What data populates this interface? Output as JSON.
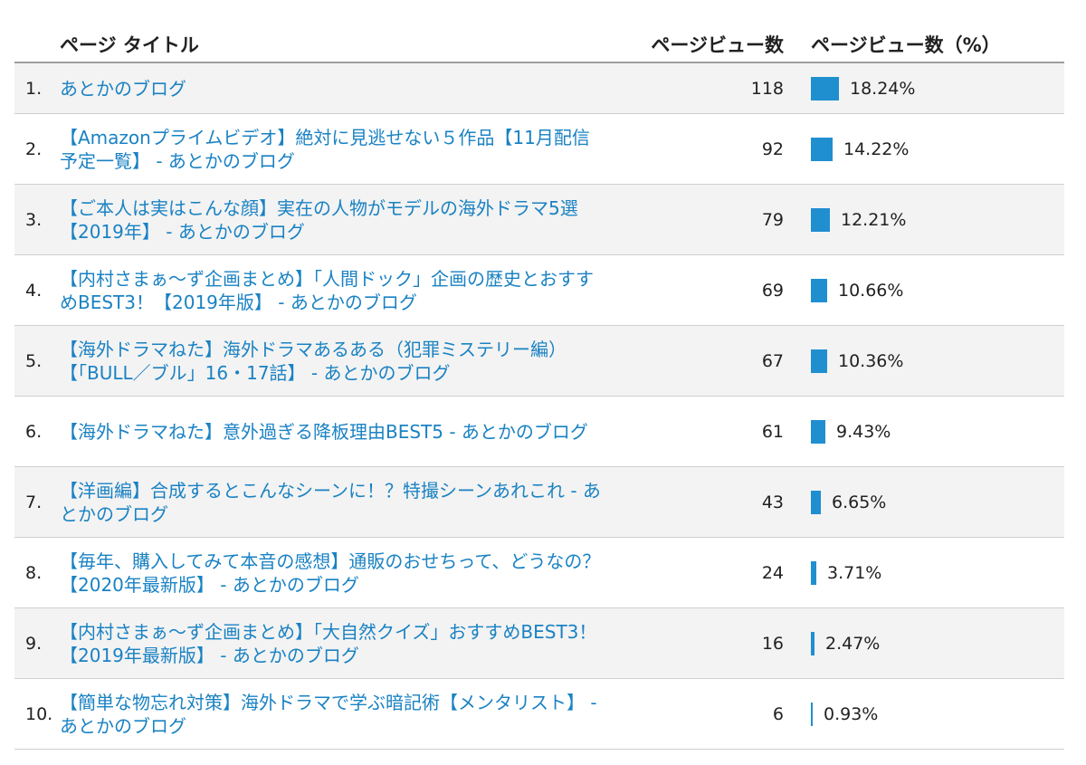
{
  "colors": {
    "link": "#1a82c3",
    "bar": "#1f8fd0",
    "row_shade": "#f3f3f3",
    "divider": "#cfcfcf"
  },
  "header": {
    "title_col": "ページ タイトル",
    "views_col": "ページビュー数",
    "pct_col": "ページビュー数（%）"
  },
  "rows": [
    {
      "rank": "1.",
      "title": "あとかのブログ",
      "views": "118",
      "pct_label": "18.24%",
      "share": 18.24
    },
    {
      "rank": "2.",
      "title": "【Amazonプライムビデオ】絶対に見逃せない５作品【11月配信予定一覧】 - あとかのブログ",
      "views": "92",
      "pct_label": "14.22%",
      "share": 14.22
    },
    {
      "rank": "3.",
      "title": "【ご本人は実はこんな顔】実在の人物がモデルの海外ドラマ5選【2019年】 - あとかのブログ",
      "views": "79",
      "pct_label": "12.21%",
      "share": 12.21
    },
    {
      "rank": "4.",
      "title": "【内村さまぁ～ず企画まとめ】「人間ドック」企画の歴史とおすすめBEST3！【2019年版】 - あとかのブログ",
      "views": "69",
      "pct_label": "10.66%",
      "share": 10.66
    },
    {
      "rank": "5.",
      "title": "【海外ドラマねた】海外ドラマあるある（犯罪ミステリー編）【「BULL／ブル」16・17話】 - あとかのブログ",
      "views": "67",
      "pct_label": "10.36%",
      "share": 10.36
    },
    {
      "rank": "6.",
      "title": "【海外ドラマねた】意外過ぎる降板理由BEST5 - あとかのブログ",
      "views": "61",
      "pct_label": "9.43%",
      "share": 9.43
    },
    {
      "rank": "7.",
      "title": "【洋画編】合成するとこんなシーンに！？特撮シーンあれこれ - あとかのブログ",
      "views": "43",
      "pct_label": "6.65%",
      "share": 6.65
    },
    {
      "rank": "8.",
      "title": "【毎年、購入してみて本音の感想】通販のおせちって、どうなの？【2020年最新版】 - あとかのブログ",
      "views": "24",
      "pct_label": "3.71%",
      "share": 3.71
    },
    {
      "rank": "9.",
      "title": "【内村さまぁ～ず企画まとめ】「大自然クイズ」おすすめBEST3！【2019年最新版】 - あとかのブログ",
      "views": "16",
      "pct_label": "2.47%",
      "share": 2.47
    },
    {
      "rank": "10.",
      "title": "【簡単な物忘れ対策】海外ドラマで学ぶ暗記術【メンタリスト】 - あとかのブログ",
      "views": "6",
      "pct_label": "0.93%",
      "share": 0.93
    }
  ]
}
